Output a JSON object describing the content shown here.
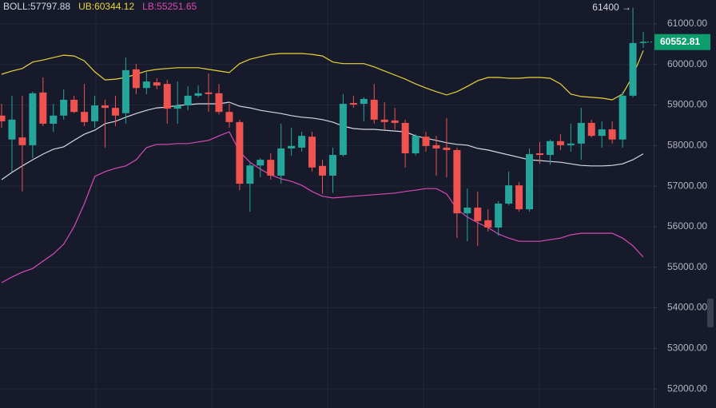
{
  "chart_data": {
    "type": "candlestick",
    "ylim": [
      51530,
      61590
    ],
    "yticks": [
      {
        "value": 52000,
        "label": "52000.00"
      },
      {
        "value": 53000,
        "label": "53000.00"
      },
      {
        "value": 54000,
        "label": "54000.00"
      },
      {
        "value": 55000,
        "label": "55000.00"
      },
      {
        "value": 56000,
        "label": "56000.00"
      },
      {
        "value": 57000,
        "label": "57000.00"
      },
      {
        "value": 58000,
        "label": "58000.00"
      },
      {
        "value": 59000,
        "label": "59000.00"
      },
      {
        "value": 60000,
        "label": "60000.00"
      },
      {
        "value": 61000,
        "label": "61000.00"
      }
    ],
    "grid": true,
    "up_color": "#26a69a",
    "down_color": "#ef5350",
    "open": [
      58740,
      58150,
      58200,
      58010,
      59310,
      58540,
      58740,
      59130,
      58830,
      58600,
      58990,
      58930,
      58800,
      59880,
      59420,
      59560,
      59520,
      58910,
      58990,
      59230,
      59310,
      59290,
      58830,
      58580,
      57060,
      57510,
      57650,
      57260,
      57930,
      57950,
      58220,
      57500,
      57260,
      57770,
      59050,
      59030,
      59130,
      58640,
      58620,
      58560,
      57810,
      58220,
      58010,
      57950,
      57890,
      56330,
      56470,
      56160,
      55980,
      56570,
      57020,
      56430,
      57810,
      57770,
      58110,
      58010,
      58050,
      58560,
      58240,
      58400,
      58150,
      59230,
      60530
    ],
    "high": [
      59030,
      59230,
      59230,
      59330,
      59680,
      59030,
      59390,
      59230,
      59520,
      59230,
      59130,
      59230,
      60170,
      60020,
      59820,
      59660,
      59620,
      59580,
      59460,
      59480,
      59780,
      59520,
      59030,
      58640,
      57570,
      57690,
      57810,
      58540,
      58440,
      58340,
      58340,
      57650,
      57950,
      59270,
      59230,
      59190,
      59520,
      59070,
      58930,
      58640,
      58280,
      58340,
      58240,
      58680,
      57950,
      56940,
      56870,
      56430,
      56630,
      57360,
      57100,
      57930,
      58090,
      58150,
      58280,
      58540,
      58930,
      58640,
      58600,
      58600,
      59330,
      61400,
      60800
    ],
    "low": [
      58440,
      57360,
      56870,
      57690,
      58480,
      58340,
      58640,
      58800,
      58480,
      58440,
      57950,
      58480,
      58540,
      59270,
      59270,
      59390,
      58540,
      58540,
      58870,
      59190,
      58830,
      58770,
      58440,
      56900,
      56370,
      57220,
      57160,
      57060,
      57750,
      57850,
      57360,
      56810,
      56830,
      57730,
      58930,
      58600,
      58540,
      58400,
      58400,
      57460,
      57750,
      57850,
      57260,
      57220,
      55720,
      55640,
      55530,
      55880,
      55780,
      56530,
      56370,
      56370,
      57550,
      57530,
      57890,
      57850,
      57650,
      58200,
      57950,
      58050,
      57950,
      59190,
      60410
    ],
    "close": [
      58600,
      58640,
      58010,
      59290,
      58540,
      58740,
      59130,
      58830,
      58580,
      58990,
      58930,
      58740,
      59860,
      59420,
      59580,
      59480,
      58910,
      58990,
      59230,
      59290,
      59270,
      58830,
      58580,
      57060,
      57510,
      57650,
      57260,
      57930,
      57990,
      58240,
      57460,
      57260,
      57770,
      59030,
      59010,
      59150,
      58640,
      58580,
      58560,
      57810,
      58240,
      57990,
      57930,
      57890,
      56330,
      56470,
      56140,
      55980,
      56570,
      57020,
      56430,
      57790,
      57770,
      58110,
      58010,
      58050,
      58560,
      58240,
      58400,
      58150,
      59230,
      60530,
      60552.81
    ],
    "series": [
      {
        "name": "BOLL:57797.88",
        "color": "#d6d8e0",
        "values": [
          57160,
          57340,
          57500,
          57650,
          57790,
          57910,
          57970,
          58130,
          58280,
          58380,
          58540,
          58600,
          58700,
          58790,
          58870,
          58930,
          58950,
          58990,
          59010,
          59030,
          59030,
          59030,
          59070,
          58970,
          58930,
          58870,
          58830,
          58790,
          58740,
          58700,
          58680,
          58640,
          58580,
          58480,
          58420,
          58400,
          58400,
          58380,
          58360,
          58340,
          58240,
          58180,
          58130,
          58070,
          58030,
          58010,
          57930,
          57890,
          57830,
          57770,
          57710,
          57650,
          57630,
          57610,
          57590,
          57550,
          57510,
          57500,
          57500,
          57510,
          57550,
          57650,
          57797.88
        ]
      },
      {
        "name": "UB:60344.12",
        "color": "#e8d43a",
        "values": [
          59760,
          59840,
          59900,
          60060,
          60110,
          60170,
          60230,
          60210,
          60090,
          59820,
          59620,
          59640,
          59680,
          59760,
          59840,
          59880,
          59900,
          59920,
          59920,
          59920,
          59880,
          59840,
          59800,
          60020,
          60130,
          60190,
          60250,
          60270,
          60270,
          60270,
          60250,
          60210,
          60060,
          60020,
          60020,
          60020,
          59940,
          59840,
          59740,
          59640,
          59520,
          59420,
          59330,
          59250,
          59330,
          59460,
          59600,
          59680,
          59680,
          59660,
          59660,
          59680,
          59680,
          59660,
          59520,
          59270,
          59210,
          59190,
          59170,
          59130,
          59270,
          59720,
          60344.12
        ]
      },
      {
        "name": "LB:55251.65",
        "color": "#d84bb4",
        "values": [
          54620,
          54760,
          54880,
          54970,
          55150,
          55330,
          55570,
          56000,
          56570,
          57240,
          57360,
          57440,
          57500,
          57650,
          57950,
          58030,
          58030,
          58050,
          58050,
          58090,
          58130,
          58240,
          58340,
          57850,
          57590,
          57420,
          57280,
          57180,
          57120,
          57020,
          56870,
          56750,
          56710,
          56730,
          56750,
          56770,
          56790,
          56810,
          56830,
          56870,
          56900,
          56940,
          56940,
          56810,
          56430,
          56240,
          56100,
          55980,
          55820,
          55720,
          55640,
          55640,
          55640,
          55680,
          55720,
          55800,
          55840,
          55840,
          55840,
          55840,
          55720,
          55530,
          55251.65
        ]
      }
    ],
    "price_label": 60552.81,
    "price_color": "#0e9e6e",
    "annotations": [
      {
        "text": "61400 →",
        "value": 61400
      }
    ]
  }
}
